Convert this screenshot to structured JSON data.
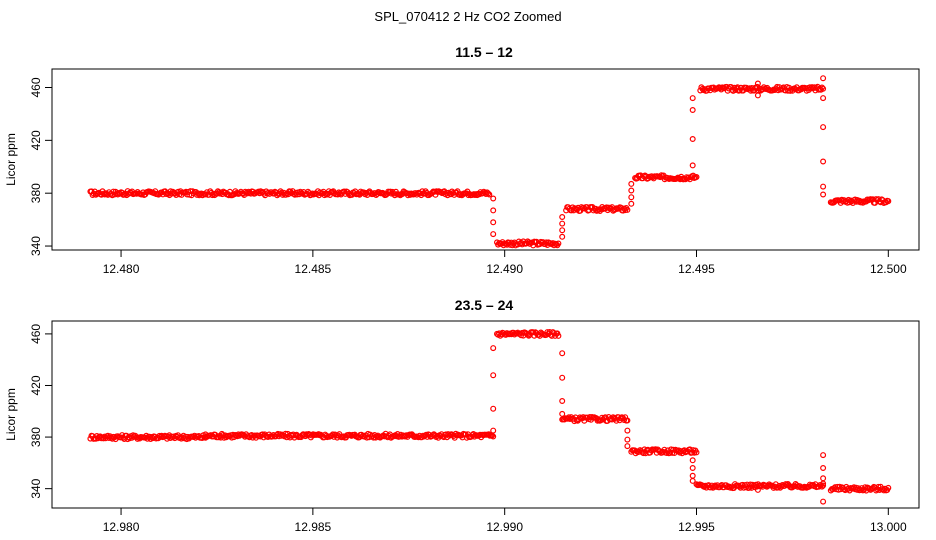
{
  "figure": {
    "title": "SPL_070412  2 Hz CO2 Zoomed"
  },
  "colors": {
    "points": "#ff0000",
    "axis": "#000000",
    "background": "#ffffff"
  },
  "chart_data": [
    {
      "type": "scatter",
      "title": "11.5 – 12",
      "xlabel": "",
      "ylabel": "Licor ppm",
      "xlim": [
        12.4782,
        12.5008
      ],
      "ylim": [
        337,
        474
      ],
      "xticks": [
        12.48,
        12.485,
        12.49,
        12.495,
        12.5
      ],
      "xtick_labels": [
        "12.480",
        "12.485",
        "12.490",
        "12.495",
        "12.500"
      ],
      "yticks": [
        340,
        380,
        420,
        460
      ],
      "ytick_labels": [
        "340",
        "380",
        "420",
        "460"
      ],
      "grid": false,
      "series": [
        {
          "marker": "open-circle",
          "color": "#ff0000",
          "segments": [
            {
              "x": [
                12.4792,
                12.4896
              ],
              "y": 380
            },
            {
              "x": [
                12.4898,
                12.4914
              ],
              "y": 342
            },
            {
              "x": [
                12.4916,
                12.4932
              ],
              "y": 368
            },
            {
              "x": [
                12.4934,
                12.495
              ],
              "y": 392
            },
            {
              "x": [
                12.4951,
                12.4983
              ],
              "y": 459
            },
            {
              "x": [
                12.4985,
                12.5
              ],
              "y": 374
            }
          ],
          "transitions": [
            {
              "x": 12.4897,
              "y": [
                349,
                358,
                367,
                376
              ]
            },
            {
              "x": 12.4915,
              "y": [
                347,
                352,
                357,
                362
              ]
            },
            {
              "x": 12.4933,
              "y": [
                372,
                377,
                382,
                387
              ]
            },
            {
              "x": 12.4949,
              "y": [
                401,
                421,
                443,
                452
              ]
            },
            {
              "x": 12.4983,
              "y": [
                467,
                452,
                430,
                404,
                385,
                379
              ]
            }
          ],
          "outliers": [
            {
              "x": 12.4966,
              "y": 463
            },
            {
              "x": 12.4966,
              "y": 454
            }
          ]
        }
      ]
    },
    {
      "type": "scatter",
      "title": "23.5 – 24",
      "xlabel": "",
      "ylabel": "Licor ppm",
      "xlim": [
        12.9782,
        13.0008
      ],
      "ylim": [
        325,
        470
      ],
      "xticks": [
        12.98,
        12.985,
        12.99,
        12.995,
        13.0
      ],
      "xtick_labels": [
        "12.980",
        "12.985",
        "12.990",
        "12.995",
        "13.000"
      ],
      "yticks": [
        340,
        380,
        420,
        460
      ],
      "ytick_labels": [
        "340",
        "380",
        "420",
        "460"
      ],
      "grid": false,
      "series": [
        {
          "marker": "open-circle",
          "color": "#ff0000",
          "segments": [
            {
              "x": [
                12.9792,
                12.9822
              ],
              "y": 380
            },
            {
              "x": [
                12.9822,
                12.9897
              ],
              "y": 381
            },
            {
              "x": [
                12.9898,
                12.9914
              ],
              "y": 460
            },
            {
              "x": [
                12.9915,
                12.9932
              ],
              "y": 394
            },
            {
              "x": [
                12.9933,
                12.995
              ],
              "y": 369
            },
            {
              "x": [
                12.995,
                12.9983
              ],
              "y": 342
            },
            {
              "x": [
                12.9985,
                13.0
              ],
              "y": 340
            }
          ],
          "transitions": [
            {
              "x": 12.9897,
              "y": [
                385,
                402,
                428,
                449
              ]
            },
            {
              "x": 12.9915,
              "y": [
                445,
                426,
                408,
                398
              ]
            },
            {
              "x": 12.9932,
              "y": [
                385,
                378,
                373
              ]
            },
            {
              "x": 12.9949,
              "y": [
                362,
                356,
                350,
                346
              ]
            },
            {
              "x": 12.9983,
              "y": [
                366,
                356,
                348,
                344
              ]
            }
          ],
          "outliers": [
            {
              "x": 12.9983,
              "y": 330
            },
            {
              "x": 12.9966,
              "y": 339
            }
          ]
        }
      ]
    }
  ]
}
